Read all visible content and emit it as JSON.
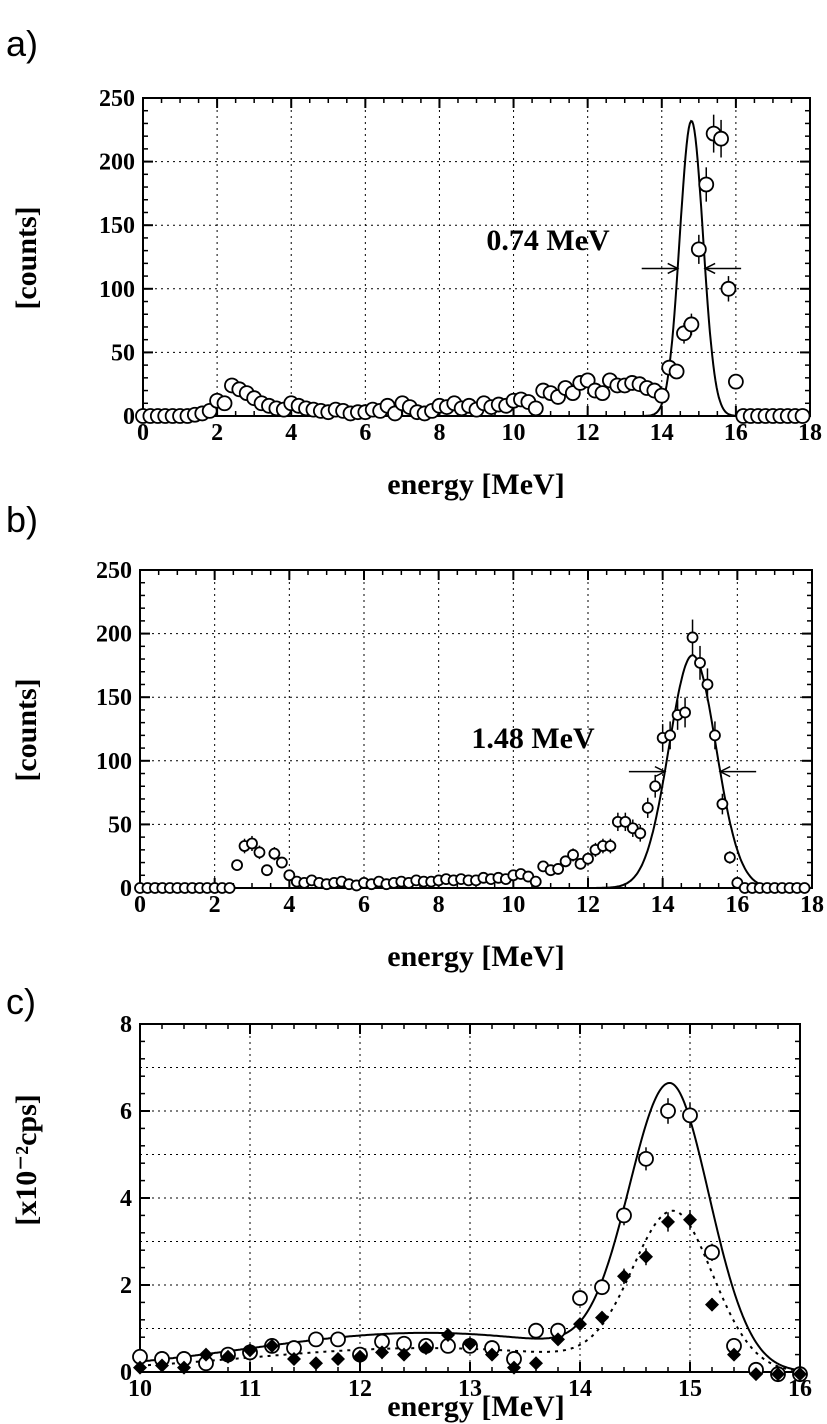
{
  "chart_data": [
    {
      "panel_label": "a)",
      "type": "scatter",
      "xlabel": "energy  [MeV]",
      "ylabel": "[counts]",
      "xlim": [
        0,
        18
      ],
      "ylim": [
        0,
        250
      ],
      "xticks": [
        0,
        2,
        4,
        6,
        8,
        10,
        12,
        14,
        16,
        18
      ],
      "yticks": [
        0,
        50,
        100,
        150,
        200,
        250
      ],
      "grid": true,
      "annotation": "0.74  MeV",
      "fwhm_range": [
        14.43,
        15.17
      ],
      "series": [
        {
          "marker": "open-circle",
          "x": [
            0,
            0.2,
            0.4,
            0.6,
            0.8,
            1.0,
            1.2,
            1.4,
            1.6,
            1.8,
            2.0,
            2.2,
            2.4,
            2.6,
            2.8,
            3.0,
            3.2,
            3.4,
            3.6,
            3.8,
            4.0,
            4.2,
            4.4,
            4.6,
            4.8,
            5.0,
            5.2,
            5.4,
            5.6,
            5.8,
            6.0,
            6.2,
            6.4,
            6.6,
            6.8,
            7.0,
            7.2,
            7.4,
            7.6,
            7.8,
            8.0,
            8.2,
            8.4,
            8.6,
            8.8,
            9.0,
            9.2,
            9.4,
            9.6,
            9.8,
            10.0,
            10.2,
            10.4,
            10.6,
            10.8,
            11.0,
            11.2,
            11.4,
            11.6,
            11.8,
            12.0,
            12.2,
            12.4,
            12.6,
            12.8,
            13.0,
            13.2,
            13.4,
            13.6,
            13.8,
            14.0,
            14.2,
            14.4,
            14.6,
            14.8,
            15.0,
            15.2,
            15.4,
            15.6,
            15.8,
            16.0,
            16.2,
            16.4,
            16.6,
            16.8,
            17.0,
            17.2,
            17.4,
            17.6,
            17.8
          ],
          "y": [
            0,
            0,
            0,
            0,
            0,
            0,
            0,
            1,
            2,
            4,
            12,
            10,
            24,
            21,
            18,
            14,
            10,
            8,
            6,
            5,
            10,
            8,
            6,
            5,
            4,
            3,
            5,
            4,
            2,
            3,
            3,
            5,
            4,
            8,
            2,
            10,
            7,
            3,
            2,
            4,
            8,
            7,
            10,
            6,
            8,
            5,
            10,
            7,
            9,
            8,
            12,
            13,
            11,
            6,
            20,
            18,
            15,
            22,
            18,
            26,
            28,
            20,
            18,
            28,
            24,
            24,
            26,
            25,
            22,
            20,
            16,
            38,
            35,
            65,
            72,
            131,
            182,
            222,
            218,
            100,
            27,
            0,
            0,
            0,
            0,
            0,
            0,
            0,
            0,
            0
          ]
        }
      ],
      "fit_curves": [
        {
          "style": "solid",
          "center": 14.8,
          "sigma": 0.315,
          "amplitude": 232
        }
      ]
    },
    {
      "panel_label": "b)",
      "type": "scatter",
      "xlabel": "energy  [MeV]",
      "ylabel": "[counts]",
      "xlim": [
        0,
        18
      ],
      "ylim": [
        0,
        250
      ],
      "xticks": [
        0,
        2,
        4,
        6,
        8,
        10,
        12,
        14,
        16,
        18
      ],
      "yticks": [
        0,
        50,
        100,
        150,
        200,
        250
      ],
      "grid": true,
      "annotation": "1.48  MeV",
      "fwhm_range": [
        14.06,
        15.54
      ],
      "series": [
        {
          "marker": "open-circle",
          "x": [
            0,
            0.2,
            0.4,
            0.6,
            0.8,
            1.0,
            1.2,
            1.4,
            1.6,
            1.8,
            2.0,
            2.2,
            2.4,
            2.6,
            2.8,
            3.0,
            3.2,
            3.4,
            3.6,
            3.8,
            4.0,
            4.2,
            4.4,
            4.6,
            4.8,
            5.0,
            5.2,
            5.4,
            5.6,
            5.8,
            6.0,
            6.2,
            6.4,
            6.6,
            6.8,
            7.0,
            7.2,
            7.4,
            7.6,
            7.8,
            8.0,
            8.2,
            8.4,
            8.6,
            8.8,
            9.0,
            9.2,
            9.4,
            9.6,
            9.8,
            10.0,
            10.2,
            10.4,
            10.6,
            10.8,
            11.0,
            11.2,
            11.4,
            11.6,
            11.8,
            12.0,
            12.2,
            12.4,
            12.6,
            12.8,
            13.0,
            13.2,
            13.4,
            13.6,
            13.8,
            14.0,
            14.2,
            14.4,
            14.6,
            14.8,
            15.0,
            15.2,
            15.4,
            15.6,
            15.8,
            16.0,
            16.2,
            16.4,
            16.6,
            16.8,
            17.0,
            17.2,
            17.4,
            17.6,
            17.8
          ],
          "y": [
            0,
            0,
            0,
            0,
            0,
            0,
            0,
            0,
            0,
            0,
            0,
            0,
            0,
            18,
            33,
            35,
            28,
            14,
            27,
            20,
            10,
            5,
            4,
            6,
            4,
            3,
            4,
            5,
            3,
            2,
            4,
            3,
            5,
            3,
            4,
            5,
            4,
            6,
            5,
            5,
            6,
            7,
            6,
            7,
            6,
            6,
            8,
            7,
            8,
            7,
            10,
            11,
            9,
            5,
            17,
            14,
            15,
            21,
            26,
            19,
            23,
            30,
            33,
            33,
            52,
            52,
            47,
            43,
            63,
            80,
            118,
            120,
            136,
            138,
            197,
            177,
            160,
            120,
            66,
            24,
            4,
            0,
            0,
            0,
            0,
            0,
            0,
            0,
            0,
            0
          ]
        }
      ],
      "fit_curves": [
        {
          "style": "solid",
          "center": 14.8,
          "sigma": 0.63,
          "amplitude": 183
        }
      ]
    },
    {
      "panel_label": "c)",
      "type": "scatter",
      "xlabel": "energy  [MeV]",
      "ylabel": "[x10⁻²cps]",
      "xlim": [
        10,
        16
      ],
      "ylim": [
        0,
        8
      ],
      "xticks": [
        10,
        11,
        12,
        13,
        14,
        15,
        16
      ],
      "yticks": [
        0,
        2,
        4,
        6,
        8
      ],
      "grid": true,
      "series": [
        {
          "marker": "open-circle",
          "x": [
            10.0,
            10.2,
            10.4,
            10.6,
            10.8,
            11.0,
            11.2,
            11.4,
            11.6,
            11.8,
            12.0,
            12.2,
            12.4,
            12.6,
            12.8,
            13.0,
            13.2,
            13.4,
            13.6,
            13.8,
            14.0,
            14.2,
            14.4,
            14.6,
            14.8,
            15.0,
            15.2,
            15.4,
            15.6,
            15.8,
            16.0
          ],
          "y": [
            0.35,
            0.3,
            0.3,
            0.2,
            0.4,
            0.45,
            0.6,
            0.55,
            0.75,
            0.75,
            0.4,
            0.7,
            0.65,
            0.6,
            0.6,
            0.6,
            0.55,
            0.3,
            0.95,
            0.95,
            1.7,
            1.95,
            3.6,
            4.9,
            6.0,
            5.9,
            2.75,
            0.6,
            0.05,
            -0.05,
            -0.05
          ]
        },
        {
          "marker": "filled-diamond",
          "x": [
            10.0,
            10.2,
            10.4,
            10.6,
            10.8,
            11.0,
            11.2,
            11.4,
            11.6,
            11.8,
            12.0,
            12.2,
            12.4,
            12.6,
            12.8,
            13.0,
            13.2,
            13.4,
            13.6,
            13.8,
            14.0,
            14.2,
            14.4,
            14.6,
            14.8,
            15.0,
            15.2,
            15.4,
            15.6,
            15.8,
            16.0
          ],
          "y": [
            0.1,
            0.15,
            0.1,
            0.4,
            0.35,
            0.5,
            0.6,
            0.3,
            0.2,
            0.3,
            0.35,
            0.45,
            0.4,
            0.55,
            0.85,
            0.65,
            0.4,
            0.1,
            0.2,
            0.75,
            1.1,
            1.25,
            2.2,
            2.65,
            3.45,
            3.5,
            1.55,
            0.4,
            -0.05,
            -0.05,
            -0.05
          ]
        }
      ],
      "fit_curves": [
        {
          "style": "solid",
          "center": 14.82,
          "sigma": 0.37,
          "amplitude": 6.3,
          "tail_amplitude": 0.9,
          "tail_center": 12.6,
          "tail_width": 1.6
        },
        {
          "style": "dotted",
          "center": 14.85,
          "sigma": 0.37,
          "amplitude": 3.5,
          "tail_amplitude": 0.55,
          "tail_center": 12.6,
          "tail_width": 1.6
        }
      ]
    }
  ]
}
